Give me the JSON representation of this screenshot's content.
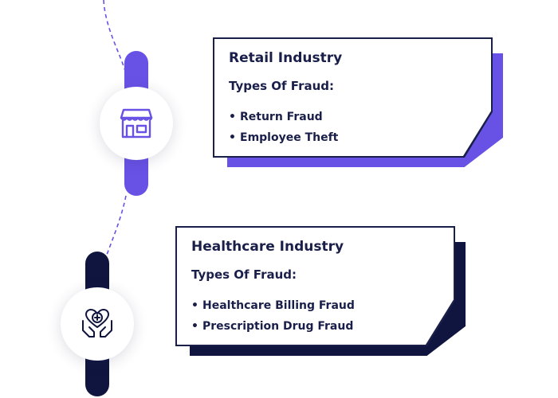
{
  "colors": {
    "retail_accent": "#6852e6",
    "healthcare_accent": "#10153f",
    "text": "#1a1f4a"
  },
  "retail": {
    "icon": "storefront-icon",
    "title": "Retail Industry",
    "subtitle": "Types Of Fraud:",
    "items": [
      "Return Fraud",
      "Employee Theft"
    ]
  },
  "healthcare": {
    "icon": "heart-hands-medical-icon",
    "title": "Healthcare Industry",
    "subtitle": "Types Of Fraud:",
    "items": [
      "Healthcare Billing Fraud",
      "Prescription Drug Fraud"
    ]
  }
}
